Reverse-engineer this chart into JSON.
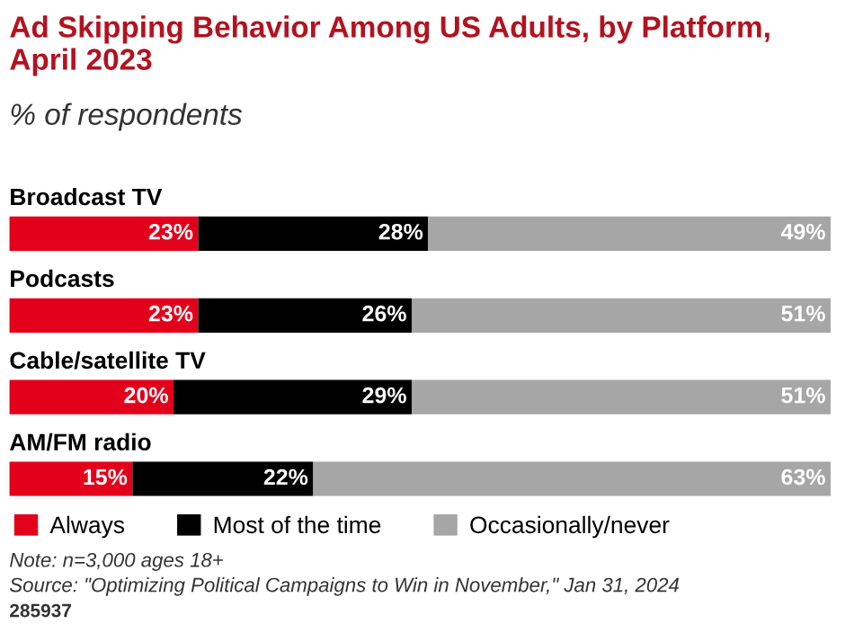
{
  "chart_data": {
    "type": "bar",
    "orientation": "horizontal",
    "stacked": true,
    "title": "Ad Skipping Behavior Among US Adults, by Platform, April 2023",
    "subtitle": "% of respondents",
    "categories": [
      "Broadcast TV",
      "Podcasts",
      "Cable/satellite TV",
      "AM/FM radio"
    ],
    "series": [
      {
        "name": "Always",
        "color": "#e3001b",
        "values": [
          23,
          23,
          20,
          15
        ],
        "value_labels": [
          "23%",
          "23%",
          "20%",
          "15%"
        ]
      },
      {
        "name": "Most of the time",
        "color": "#000000",
        "values": [
          28,
          26,
          29,
          22
        ],
        "value_labels": [
          "28%",
          "26%",
          "29%",
          "22%"
        ]
      },
      {
        "name": "Occasionally/never",
        "color": "#a6a6a6",
        "values": [
          49,
          51,
          51,
          63
        ],
        "value_labels": [
          "49%",
          "51%",
          "51%",
          "63%"
        ]
      }
    ],
    "legend": "bottom",
    "tick_labels": false,
    "annotations": [
      "Note: n=3,000 ages 18+",
      "Source: \"Optimizing Political Campaigns to Win in November,\" Jan 31, 2024",
      "285937"
    ]
  }
}
